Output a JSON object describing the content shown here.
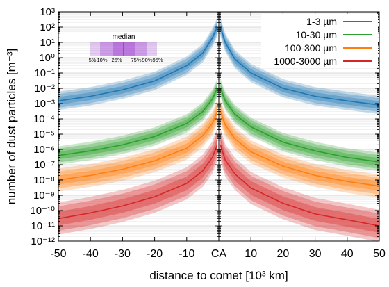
{
  "chart_data": {
    "type": "line",
    "xlabel": "distance to comet [10³ km]",
    "ylabel": "number of dust particles [m⁻³]",
    "xlim": [
      -50,
      50
    ],
    "ylim_log10": [
      -12,
      3
    ],
    "y_scale": "log",
    "x_ticks": [
      {
        "value": -50,
        "label": "-50"
      },
      {
        "value": -40,
        "label": "-40"
      },
      {
        "value": -30,
        "label": "-30"
      },
      {
        "value": -20,
        "label": "-20"
      },
      {
        "value": -10,
        "label": "-10"
      },
      {
        "value": 0,
        "label": "CA"
      },
      {
        "value": 10,
        "label": "10"
      },
      {
        "value": 20,
        "label": "20"
      },
      {
        "value": 30,
        "label": "30"
      },
      {
        "value": 40,
        "label": "40"
      },
      {
        "value": 50,
        "label": "50"
      }
    ],
    "y_ticks": [
      {
        "exp": 3,
        "label": "10³"
      },
      {
        "exp": 2,
        "label": "10²"
      },
      {
        "exp": 1,
        "label": "10¹"
      },
      {
        "exp": 0,
        "label": "10⁰"
      },
      {
        "exp": -1,
        "label": "10⁻¹"
      },
      {
        "exp": -2,
        "label": "10⁻²"
      },
      {
        "exp": -3,
        "label": "10⁻³"
      },
      {
        "exp": -4,
        "label": "10⁻⁴"
      },
      {
        "exp": -5,
        "label": "10⁻⁵"
      },
      {
        "exp": -6,
        "label": "10⁻⁶"
      },
      {
        "exp": -7,
        "label": "10⁻⁷"
      },
      {
        "exp": -8,
        "label": "10⁻⁸"
      },
      {
        "exp": -9,
        "label": "10⁻⁹"
      },
      {
        "exp": -10,
        "label": "10⁻¹⁰"
      },
      {
        "exp": -11,
        "label": "10⁻¹¹"
      },
      {
        "exp": -12,
        "label": "10⁻¹²"
      }
    ],
    "grid": true,
    "legend_position": "top-right",
    "percentile_key": {
      "title": "median",
      "labels": [
        "5%",
        "10%",
        "25%",
        "75%",
        "90%",
        "95%"
      ],
      "color": "#9933cc"
    },
    "series": [
      {
        "name": "1-3 µm",
        "color": "#1f77b4",
        "median": [
          {
            "x": -50,
            "y": 0.0015
          },
          {
            "x": -40,
            "y": 0.003
          },
          {
            "x": -30,
            "y": 0.008
          },
          {
            "x": -20,
            "y": 0.03
          },
          {
            "x": -10,
            "y": 0.3
          },
          {
            "x": -5,
            "y": 2
          },
          {
            "x": -2,
            "y": 20
          },
          {
            "x": -0.5,
            "y": 100
          },
          {
            "x": 0.5,
            "y": 100
          },
          {
            "x": 2,
            "y": 10
          },
          {
            "x": 5,
            "y": 0.8
          },
          {
            "x": 10,
            "y": 0.1
          },
          {
            "x": 20,
            "y": 0.01
          },
          {
            "x": 30,
            "y": 0.003
          },
          {
            "x": 40,
            "y": 0.0015
          },
          {
            "x": 50,
            "y": 0.0008
          }
        ],
        "band_decades": {
          "p25_75": 0.25,
          "p10_90": 0.45,
          "p5_95": 0.6
        }
      },
      {
        "name": "10-30 µm",
        "color": "#2ca02c",
        "median": [
          {
            "x": -50,
            "y": 4e-07
          },
          {
            "x": -40,
            "y": 8e-07
          },
          {
            "x": -30,
            "y": 2e-06
          },
          {
            "x": -20,
            "y": 7e-06
          },
          {
            "x": -10,
            "y": 5e-05
          },
          {
            "x": -5,
            "y": 0.0003
          },
          {
            "x": -2,
            "y": 0.002
          },
          {
            "x": -0.5,
            "y": 0.01
          },
          {
            "x": 0.5,
            "y": 0.01
          },
          {
            "x": 2,
            "y": 0.0015
          },
          {
            "x": 5,
            "y": 0.0002
          },
          {
            "x": 10,
            "y": 3e-05
          },
          {
            "x": 20,
            "y": 3e-06
          },
          {
            "x": 30,
            "y": 8e-07
          },
          {
            "x": 40,
            "y": 3e-07
          },
          {
            "x": 50,
            "y": 1.5e-07
          }
        ],
        "band_decades": {
          "p25_75": 0.25,
          "p10_90": 0.45,
          "p5_95": 0.6
        }
      },
      {
        "name": "100-300 µm",
        "color": "#ff7f0e",
        "median": [
          {
            "x": -50,
            "y": 1e-08
          },
          {
            "x": -40,
            "y": 2e-08
          },
          {
            "x": -30,
            "y": 5e-08
          },
          {
            "x": -20,
            "y": 1.8e-07
          },
          {
            "x": -10,
            "y": 1.2e-06
          },
          {
            "x": -5,
            "y": 8e-06
          },
          {
            "x": -2,
            "y": 5e-05
          },
          {
            "x": -0.5,
            "y": 0.0003
          },
          {
            "x": 0.5,
            "y": 0.0003
          },
          {
            "x": 2,
            "y": 4e-05
          },
          {
            "x": 5,
            "y": 5e-06
          },
          {
            "x": 10,
            "y": 7e-07
          },
          {
            "x": 20,
            "y": 8e-08
          },
          {
            "x": 30,
            "y": 2e-08
          },
          {
            "x": 40,
            "y": 8e-09
          },
          {
            "x": 50,
            "y": 4e-09
          }
        ],
        "band_decades": {
          "p25_75": 0.3,
          "p10_90": 0.55,
          "p5_95": 0.75
        }
      },
      {
        "name": "1000-3000 µm",
        "color": "#d62728",
        "median": [
          {
            "x": -50,
            "y": 3e-11
          },
          {
            "x": -40,
            "y": 7e-11
          },
          {
            "x": -30,
            "y": 2e-10
          },
          {
            "x": -20,
            "y": 8e-10
          },
          {
            "x": -10,
            "y": 6e-09
          },
          {
            "x": -5,
            "y": 4e-08
          },
          {
            "x": -2,
            "y": 3e-07
          },
          {
            "x": -0.5,
            "y": 2e-06
          },
          {
            "x": 0.5,
            "y": 2e-06
          },
          {
            "x": 2,
            "y": 2e-07
          },
          {
            "x": 5,
            "y": 2.5e-08
          },
          {
            "x": 10,
            "y": 3e-09
          },
          {
            "x": 20,
            "y": 3e-10
          },
          {
            "x": 30,
            "y": 6e-11
          },
          {
            "x": 40,
            "y": 2.5e-11
          },
          {
            "x": 50,
            "y": 1e-11
          }
        ],
        "band_decades": {
          "p25_75": 0.45,
          "p10_90": 0.8,
          "p5_95": 1.05
        }
      }
    ]
  }
}
